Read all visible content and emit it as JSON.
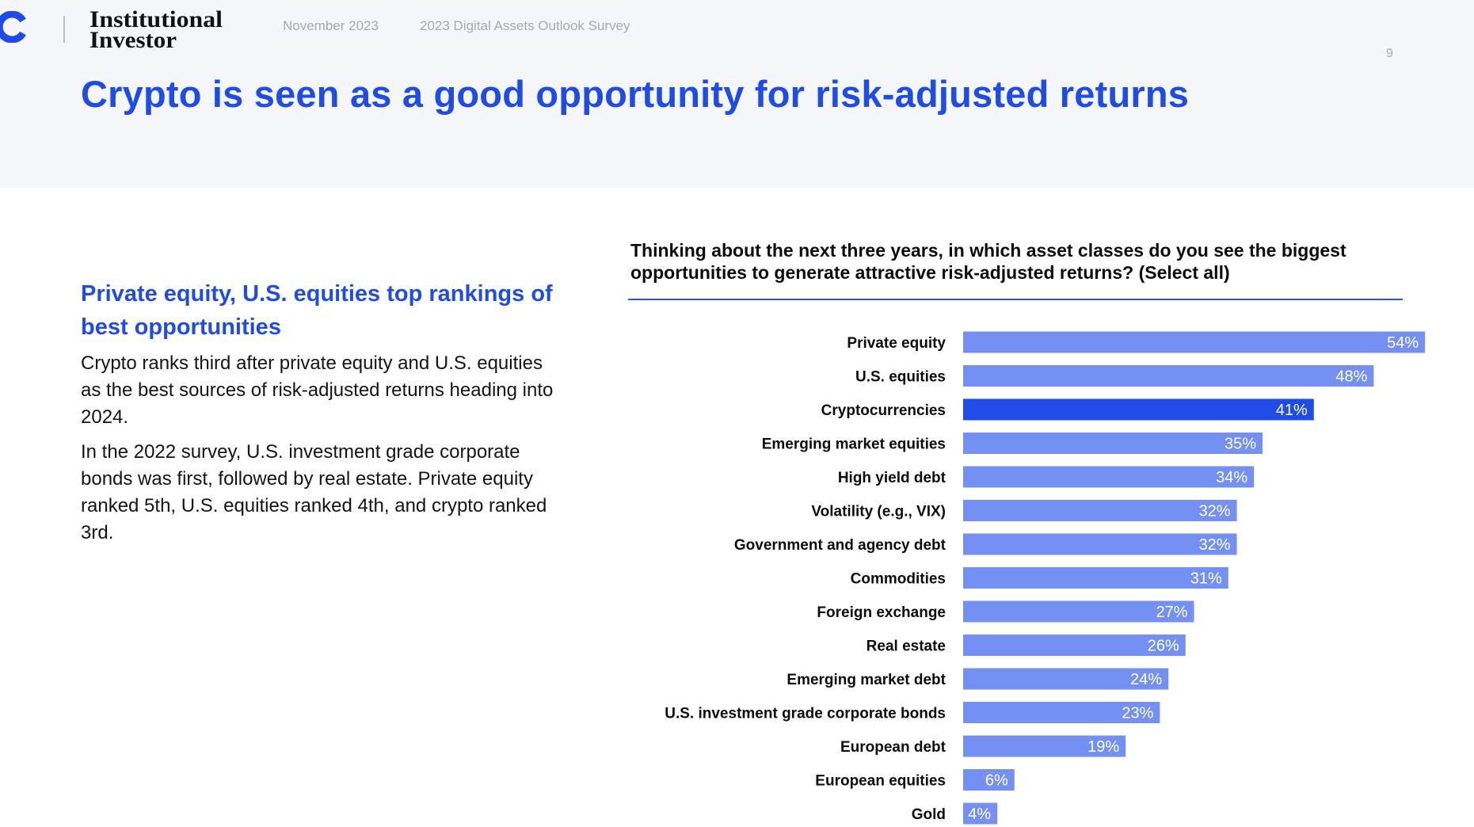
{
  "header": {
    "publisher_logo_text": [
      "Institutional",
      "Investor"
    ],
    "date": "November 2023",
    "survey_name": "2023 Digital Assets Outlook Survey",
    "page_number": "9"
  },
  "title": "Crypto is seen as a good opportunity for risk-adjusted returns",
  "sidebar": {
    "heading": "Private equity, U.S. equities top rankings of best opportunities",
    "paragraphs": [
      "Crypto ranks third after private equity and U.S. equities as the best sources of risk-adjusted returns heading into 2024.",
      "In the 2022 survey, U.S. investment grade corporate bonds was first, followed by real estate. Private equity ranked 5th, U.S. equities ranked 4th, and crypto ranked 3rd."
    ]
  },
  "colors": {
    "brand_blue": "#1f4be6",
    "bar_default": "#7490f2",
    "bar_highlight": "#1f4be6",
    "header_band": "#f4f6fa"
  },
  "chart_data": {
    "type": "bar",
    "orientation": "horizontal",
    "title": "Thinking about the next three years, in which asset classes do you see the biggest opportunities to generate attractive risk-adjusted returns? (Select all)",
    "unit": "%",
    "highlight_category": "Cryptocurrencies",
    "categories": [
      "Private equity",
      "U.S. equities",
      "Cryptocurrencies",
      "Emerging market equities",
      "High yield debt",
      "Volatility (e.g., VIX)",
      "Government and agency debt",
      "Commodities",
      "Foreign exchange",
      "Real estate",
      "Emerging market debt",
      "U.S. investment grade corporate bonds",
      "European debt",
      "European equities",
      "Gold"
    ],
    "values": [
      54,
      48,
      41,
      35,
      34,
      32,
      32,
      31,
      27,
      26,
      24,
      23,
      19,
      6,
      4
    ],
    "value_labels": [
      "54%",
      "48%",
      "41%",
      "35%",
      "34%",
      "32%",
      "32%",
      "31%",
      "27%",
      "26%",
      "24%",
      "23%",
      "19%",
      "6%",
      "4%"
    ]
  }
}
